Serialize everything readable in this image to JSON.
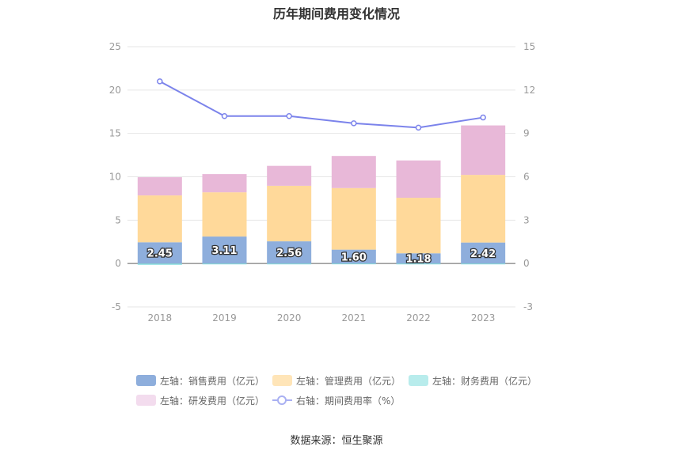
{
  "title": "历年期间费用变化情况",
  "source": "数据来源：恒生聚源",
  "chart_data": {
    "type": "bar",
    "stacked": true,
    "categories": [
      "2018",
      "2019",
      "2020",
      "2021",
      "2022",
      "2023"
    ],
    "left_axis": {
      "ylim": [
        -5,
        25
      ],
      "ticks": [
        "-5",
        "0",
        "5",
        "10",
        "15",
        "20",
        "25"
      ]
    },
    "right_axis": {
      "ylim": [
        -3,
        15
      ],
      "ticks": [
        "-3",
        "0",
        "3",
        "6",
        "9",
        "12",
        "15"
      ]
    },
    "grid": true,
    "series": [
      {
        "name": "左轴：销售费用（亿元）",
        "type": "bar",
        "axis": "left",
        "color": "#8eaedc",
        "values": [
          2.45,
          3.11,
          2.56,
          1.6,
          1.18,
          2.42
        ],
        "labels": [
          "2.45",
          "3.11",
          "2.56",
          "1.60",
          "1.18",
          "2.42"
        ]
      },
      {
        "name": "左轴：管理费用（亿元）",
        "type": "bar",
        "axis": "left",
        "color": "#ffd99a",
        "values": [
          5.4,
          5.1,
          6.4,
          7.1,
          6.4,
          7.8
        ]
      },
      {
        "name": "左轴：财务费用（亿元）",
        "type": "bar",
        "axis": "left",
        "color": "#8fe0e3",
        "values": [
          -0.15,
          -0.1,
          -0.1,
          -0.05,
          -0.1,
          -0.1
        ]
      },
      {
        "name": "左轴：研发费用（亿元）",
        "type": "bar",
        "axis": "left",
        "color": "#e8b8d8",
        "values": [
          2.1,
          2.1,
          2.3,
          3.7,
          4.3,
          5.7
        ]
      },
      {
        "name": "右轴：期间费用率（%）",
        "type": "line",
        "axis": "right",
        "color": "#7b83eb",
        "values": [
          12.6,
          10.2,
          10.2,
          9.7,
          9.4,
          10.1
        ]
      }
    ],
    "legend": [
      {
        "label": "左轴：销售费用（亿元）",
        "color": "#8eaedc",
        "kind": "box"
      },
      {
        "label": "左轴：管理费用（亿元）",
        "color": "#ffe5b8",
        "kind": "box"
      },
      {
        "label": "左轴：财务费用（亿元）",
        "color": "#b8ecec",
        "kind": "box"
      },
      {
        "label": "左轴：研发费用（亿元）",
        "color": "#f3dcee",
        "kind": "box"
      },
      {
        "label": "右轴：期间费用率（%）",
        "color": "#a9b0f2",
        "kind": "line"
      }
    ]
  }
}
